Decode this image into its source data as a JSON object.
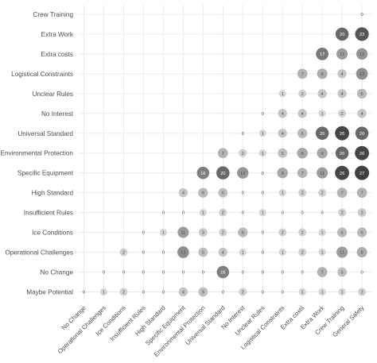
{
  "chart_data": {
    "type": "heatmap",
    "categories": [
      "Maybe Potential",
      "No Change",
      "Operational Challenges",
      "Ice Conditions",
      "Insufficient Rules",
      "High Standard",
      "Specific Equipment",
      "Environmental Protection",
      "Universal Standard",
      "No Interest",
      "Unclear Rules",
      "Logistical Constraints",
      "Extra costs",
      "Extra Work",
      "Crew Training",
      "General Safety"
    ],
    "x_labels": [
      "No Change",
      "Operational Challenges",
      "Ice Conditions",
      "Insufficient Rules",
      "High Standard",
      "Specific Equipment",
      "Environmental Protection",
      "Universal Standard",
      "No Interest",
      "Unclear Rules",
      "Logistical Constraints",
      "Extra costs",
      "Extra Work",
      "Crew Training",
      "General Safety"
    ],
    "y_labels": [
      "Crew Training",
      "Extra Work",
      "Extra costs",
      "Logistical Constraints",
      "Unclear Rules",
      "No Interest",
      "Universal Standard",
      "Environmental Protection",
      "Specific Equipment",
      "High Standard",
      "Insufficient Rules",
      "Ice Conditions",
      "Operational Challenges",
      "No Change",
      "Maybe Potential"
    ],
    "rows": [
      {
        "y": "Crew Training",
        "values": [
          null,
          null,
          null,
          null,
          null,
          null,
          null,
          null,
          null,
          null,
          null,
          null,
          null,
          null,
          0
        ]
      },
      {
        "y": "Extra Work",
        "values": [
          null,
          null,
          null,
          null,
          null,
          null,
          null,
          null,
          null,
          null,
          null,
          null,
          null,
          20,
          23
        ]
      },
      {
        "y": "Extra costs",
        "values": [
          null,
          null,
          null,
          null,
          null,
          null,
          null,
          null,
          null,
          null,
          null,
          null,
          17,
          11,
          12
        ]
      },
      {
        "y": "Logistical Constraints",
        "values": [
          null,
          null,
          null,
          null,
          null,
          null,
          null,
          null,
          null,
          null,
          null,
          7,
          8,
          4,
          13
        ]
      },
      {
        "y": "Unclear Rules",
        "values": [
          null,
          null,
          null,
          null,
          null,
          null,
          null,
          null,
          null,
          null,
          1,
          2,
          4,
          4,
          6
        ]
      },
      {
        "y": "No Interest",
        "values": [
          null,
          null,
          null,
          null,
          null,
          null,
          null,
          null,
          null,
          0,
          4,
          4,
          1,
          2,
          4
        ]
      },
      {
        "y": "Universal Standard",
        "values": [
          null,
          null,
          null,
          null,
          null,
          null,
          null,
          null,
          0,
          1,
          4,
          6,
          20,
          26,
          20
        ]
      },
      {
        "y": "Environmental Protection",
        "values": [
          null,
          null,
          null,
          null,
          null,
          null,
          null,
          7,
          2,
          1,
          5,
          9,
          9,
          20,
          26
        ]
      },
      {
        "y": "Specific Equipment",
        "values": [
          null,
          null,
          null,
          null,
          null,
          null,
          16,
          20,
          12,
          0,
          9,
          7,
          11,
          26,
          27
        ]
      },
      {
        "y": "High Standard",
        "values": [
          null,
          null,
          null,
          null,
          null,
          4,
          6,
          5,
          0,
          0,
          1,
          2,
          2,
          7,
          7
        ]
      },
      {
        "y": "Insufficient Rules",
        "values": [
          null,
          null,
          null,
          null,
          0,
          0,
          1,
          2,
          0,
          1,
          0,
          0,
          0,
          2,
          3
        ]
      },
      {
        "y": "Ice Conditions",
        "values": [
          null,
          null,
          null,
          0,
          1,
          11,
          3,
          2,
          6,
          0,
          2,
          2,
          1,
          6,
          6
        ]
      },
      {
        "y": "Operational Challenges",
        "values": [
          null,
          null,
          2,
          0,
          0,
          13,
          5,
          4,
          1,
          0,
          1,
          2,
          1,
          11,
          8
        ]
      },
      {
        "y": "No Change",
        "values": [
          null,
          0,
          0,
          0,
          0,
          0,
          0,
          16,
          0,
          0,
          0,
          0,
          7,
          5,
          0
        ]
      },
      {
        "y": "Maybe Potential",
        "values": [
          0,
          1,
          2,
          0,
          0,
          4,
          5,
          0,
          2,
          0,
          0,
          1,
          1,
          1,
          2
        ]
      }
    ],
    "value_range": [
      0,
      27
    ],
    "grid": true,
    "legend": "none"
  },
  "colors": {
    "low": "#dcdcdc",
    "high": "#3f3f3f",
    "grid": "#ebebeb",
    "axis_text": "#4d4d4d",
    "label_light": "#ffffff",
    "label_dark": "#4d4d4d"
  }
}
